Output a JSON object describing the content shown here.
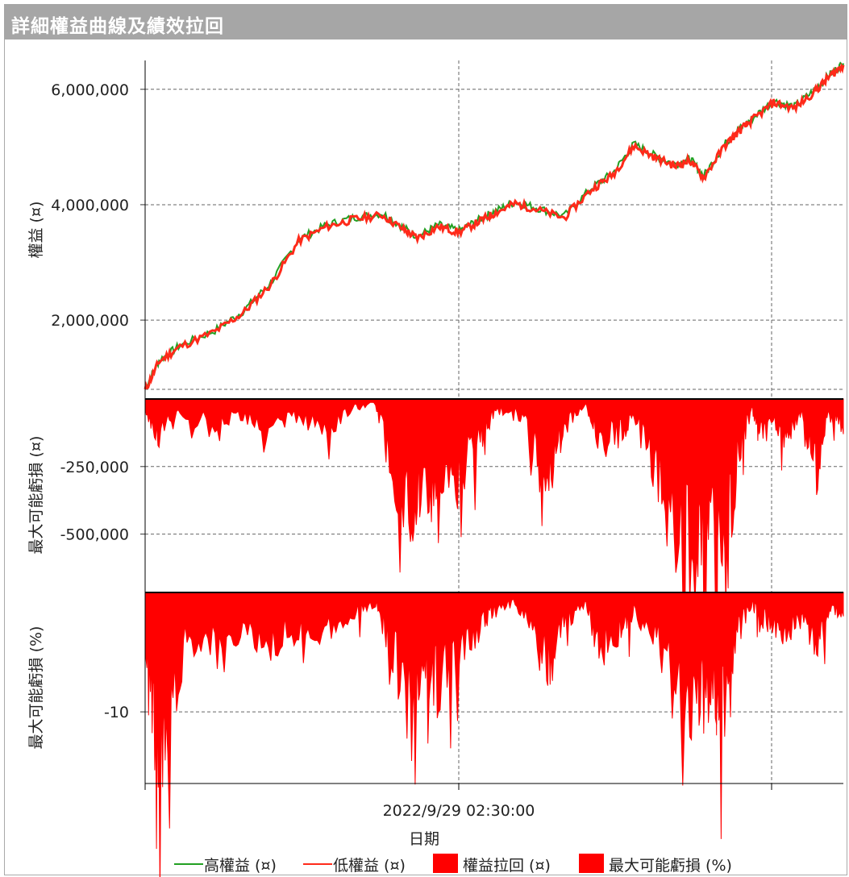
{
  "window": {
    "title": "詳細權益曲線及績效拉回"
  },
  "colors": {
    "high_equity": "#22a022",
    "low_equity": "#ff2a1a",
    "drawdown_fill": "#ff0000",
    "grid": "#666666"
  },
  "chart_data": [
    {
      "type": "line",
      "panel": "equity",
      "ylabel": "權益 (¤)",
      "yticks": [
        "6,000,000",
        "4,000,000",
        "2,000,000"
      ],
      "ytick_values": [
        6000000,
        4000000,
        2000000
      ],
      "ylim": [
        800000,
        6500000
      ],
      "x": [
        0,
        0.02,
        0.05,
        0.1,
        0.14,
        0.18,
        0.22,
        0.26,
        0.3,
        0.34,
        0.37,
        0.39,
        0.42,
        0.45,
        0.48,
        0.5,
        0.53,
        0.56,
        0.6,
        0.64,
        0.67,
        0.7,
        0.73,
        0.76,
        0.78,
        0.8,
        0.83,
        0.85,
        0.87,
        0.9,
        0.93,
        0.96,
        0.98,
        1.0
      ],
      "series": [
        {
          "name": "高權益 (¤)",
          "values": [
            820000,
            1300000,
            1560000,
            1820000,
            2150000,
            2650000,
            3400000,
            3650000,
            3780000,
            3850000,
            3600000,
            3450000,
            3650000,
            3550000,
            3750000,
            3880000,
            4050000,
            3950000,
            3800000,
            4300000,
            4550000,
            5050000,
            4850000,
            4700000,
            4800000,
            4500000,
            5050000,
            5300000,
            5500000,
            5800000,
            5700000,
            6000000,
            6250000,
            6450000
          ]
        },
        {
          "name": "低權益 (¤)",
          "values": [
            780000,
            1280000,
            1540000,
            1800000,
            2120000,
            2620000,
            3370000,
            3620000,
            3750000,
            3820000,
            3570000,
            3420000,
            3620000,
            3520000,
            3720000,
            3850000,
            4020000,
            3920000,
            3770000,
            4270000,
            4520000,
            5020000,
            4820000,
            4670000,
            4770000,
            4470000,
            5020000,
            5270000,
            5470000,
            5770000,
            5670000,
            5970000,
            6220000,
            6420000
          ]
        }
      ]
    },
    {
      "type": "area",
      "panel": "drawdown_amount",
      "name": "權益拉回 (¤)",
      "ylabel": "最大可能虧損 (¤)",
      "yticks": [
        "-250,000",
        "-500,000"
      ],
      "ytick_values": [
        -250000,
        -500000
      ],
      "ylim": [
        -710000,
        0
      ],
      "x": [
        0,
        0.02,
        0.05,
        0.1,
        0.14,
        0.18,
        0.22,
        0.26,
        0.3,
        0.33,
        0.35,
        0.38,
        0.4,
        0.42,
        0.45,
        0.48,
        0.5,
        0.53,
        0.56,
        0.58,
        0.6,
        0.63,
        0.65,
        0.68,
        0.7,
        0.73,
        0.76,
        0.79,
        0.81,
        0.83,
        0.85,
        0.87,
        0.88,
        0.9,
        0.92,
        0.94,
        0.96,
        0.98,
        1.0
      ],
      "values": [
        -40000,
        -170000,
        -60000,
        -110000,
        -70000,
        -150000,
        -80000,
        -130000,
        -40000,
        -20000,
        -280000,
        -540000,
        -330000,
        -450000,
        -350000,
        -180000,
        -60000,
        -40000,
        -220000,
        -330000,
        -120000,
        -20000,
        -180000,
        -160000,
        -80000,
        -300000,
        -590000,
        -700000,
        -600000,
        -710000,
        -220000,
        -40000,
        -130000,
        -120000,
        -170000,
        -80000,
        -340000,
        -60000,
        -130000
      ]
    },
    {
      "type": "area",
      "panel": "drawdown_percent",
      "name": "最大可能虧損 (%)",
      "ylabel": "最大可能虧損 (%)",
      "yticks": [
        "-10"
      ],
      "ytick_values": [
        -10
      ],
      "ylim": [
        -16,
        0
      ],
      "x": [
        0,
        0.015,
        0.03,
        0.06,
        0.1,
        0.14,
        0.18,
        0.22,
        0.26,
        0.3,
        0.33,
        0.35,
        0.38,
        0.4,
        0.42,
        0.45,
        0.48,
        0.5,
        0.53,
        0.56,
        0.58,
        0.6,
        0.63,
        0.65,
        0.68,
        0.7,
        0.73,
        0.76,
        0.79,
        0.81,
        0.83,
        0.85,
        0.87,
        0.88,
        0.9,
        0.92,
        0.94,
        0.96,
        0.98,
        1.0
      ],
      "values": [
        -6,
        -14,
        -16,
        -4,
        -6,
        -4,
        -5,
        -3.5,
        -4,
        -2,
        -1,
        -5,
        -11.5,
        -7,
        -9,
        -6,
        -4,
        -1.5,
        -1,
        -5,
        -7,
        -3,
        -1,
        -5.5,
        -4,
        -2,
        -4,
        -10,
        -12,
        -9,
        -12,
        -4,
        -1,
        -3,
        -3,
        -4,
        -2,
        -5,
        -2,
        -2
      ]
    }
  ],
  "xaxis": {
    "tick_label": "2022/9/29 02:30:00",
    "label": "日期"
  },
  "legend": [
    {
      "label": "高權益 (¤)",
      "kind": "line",
      "color": "#22a022"
    },
    {
      "label": "低權益 (¤)",
      "kind": "line",
      "color": "#ff2a1a"
    },
    {
      "label": "權益拉回 (¤)",
      "kind": "box",
      "color": "#ff0000"
    },
    {
      "label": "最大可能虧損 (%)",
      "kind": "box",
      "color": "#ff0000"
    }
  ]
}
